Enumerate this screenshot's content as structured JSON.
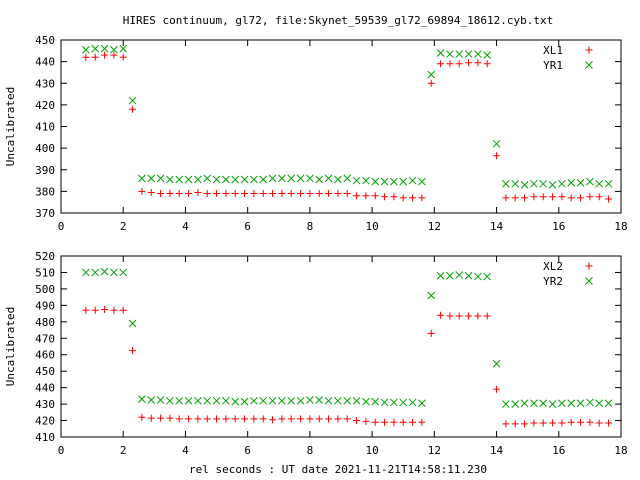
{
  "chart_data": [
    {
      "type": "scatter",
      "title": "HIRES continuum, gl72, file:Skynet_59539_gl72_69894_18612.cyb.txt",
      "xlabel": "",
      "ylabel": "Uncalibrated",
      "xlim": [
        0,
        18
      ],
      "ylim": [
        370,
        450
      ],
      "xticks": [
        0,
        2,
        4,
        6,
        8,
        10,
        12,
        14,
        16,
        18
      ],
      "yticks": [
        370,
        380,
        390,
        400,
        410,
        420,
        430,
        440,
        450
      ],
      "legend_position": "top-right",
      "series": [
        {
          "name": "XL1",
          "marker": "plus",
          "color": "#ff0000",
          "x": [
            0.8,
            1.1,
            1.4,
            1.7,
            2.0,
            2.3,
            2.6,
            2.9,
            3.2,
            3.5,
            3.8,
            4.1,
            4.4,
            4.7,
            5.0,
            5.3,
            5.6,
            5.9,
            6.2,
            6.5,
            6.8,
            7.1,
            7.4,
            7.7,
            8.0,
            8.3,
            8.6,
            8.9,
            9.2,
            9.5,
            9.8,
            10.1,
            10.4,
            10.7,
            11.0,
            11.3,
            11.6,
            11.9,
            12.2,
            12.5,
            12.8,
            13.1,
            13.4,
            13.7,
            14.0,
            14.3,
            14.6,
            14.9,
            15.2,
            15.5,
            15.8,
            16.1,
            16.4,
            16.7,
            17.0,
            17.3,
            17.6
          ],
          "y": [
            442,
            442,
            443,
            443,
            442,
            418,
            380,
            379.5,
            379,
            379,
            379,
            379,
            379.5,
            379,
            379,
            379,
            379,
            379,
            379,
            379,
            379,
            379,
            379,
            379,
            379,
            379,
            379,
            379,
            379,
            378,
            378,
            378,
            377.5,
            377.5,
            377,
            377,
            377,
            430,
            439,
            439,
            439,
            439.5,
            439.5,
            439,
            396.5,
            377,
            377,
            377,
            377.5,
            377.5,
            377.5,
            377.5,
            377,
            377,
            377.5,
            377.5,
            376.5
          ]
        },
        {
          "name": "YR1",
          "marker": "cross",
          "color": "#00a000",
          "x": [
            0.8,
            1.1,
            1.4,
            1.7,
            2.0,
            2.3,
            2.6,
            2.9,
            3.2,
            3.5,
            3.8,
            4.1,
            4.4,
            4.7,
            5.0,
            5.3,
            5.6,
            5.9,
            6.2,
            6.5,
            6.8,
            7.1,
            7.4,
            7.7,
            8.0,
            8.3,
            8.6,
            8.9,
            9.2,
            9.5,
            9.8,
            10.1,
            10.4,
            10.7,
            11.0,
            11.3,
            11.6,
            11.9,
            12.2,
            12.5,
            12.8,
            13.1,
            13.4,
            13.7,
            14.0,
            14.3,
            14.6,
            14.9,
            15.2,
            15.5,
            15.8,
            16.1,
            16.4,
            16.7,
            17.0,
            17.3,
            17.6
          ],
          "y": [
            445.5,
            446,
            446,
            445.5,
            446,
            422,
            386,
            386,
            386,
            385.5,
            385.5,
            385.5,
            385.5,
            386,
            385.5,
            385.5,
            385.5,
            385.5,
            385.5,
            385.5,
            386,
            386,
            386,
            386,
            386,
            385.5,
            386,
            385.5,
            386,
            385,
            385,
            384.5,
            384.5,
            384.5,
            384.5,
            385,
            384.5,
            434,
            444,
            443.5,
            443.5,
            443.5,
            443.5,
            443,
            402,
            383.5,
            383.5,
            383,
            383.5,
            383.5,
            383,
            383.5,
            384,
            384,
            384.5,
            383.5,
            383.5
          ]
        }
      ]
    },
    {
      "type": "scatter",
      "title": "",
      "xlabel": "rel seconds : UT date 2021-11-21T14:58:11.230",
      "ylabel": "Uncalibrated",
      "xlim": [
        0,
        18
      ],
      "ylim": [
        410,
        520
      ],
      "xticks": [
        0,
        2,
        4,
        6,
        8,
        10,
        12,
        14,
        16,
        18
      ],
      "yticks": [
        410,
        420,
        430,
        440,
        450,
        460,
        470,
        480,
        490,
        500,
        510,
        520
      ],
      "legend_position": "top-right",
      "series": [
        {
          "name": "XL2",
          "marker": "plus",
          "color": "#ff0000",
          "x": [
            0.8,
            1.1,
            1.4,
            1.7,
            2.0,
            2.3,
            2.6,
            2.9,
            3.2,
            3.5,
            3.8,
            4.1,
            4.4,
            4.7,
            5.0,
            5.3,
            5.6,
            5.9,
            6.2,
            6.5,
            6.8,
            7.1,
            7.4,
            7.7,
            8.0,
            8.3,
            8.6,
            8.9,
            9.2,
            9.5,
            9.8,
            10.1,
            10.4,
            10.7,
            11.0,
            11.3,
            11.6,
            11.9,
            12.2,
            12.5,
            12.8,
            13.1,
            13.4,
            13.7,
            14.0,
            14.3,
            14.6,
            14.9,
            15.2,
            15.5,
            15.8,
            16.1,
            16.4,
            16.7,
            17.0,
            17.3,
            17.6
          ],
          "y": [
            487,
            487,
            487.5,
            487,
            487,
            462.5,
            422,
            421.5,
            421.5,
            421.5,
            421,
            421,
            421,
            421,
            421,
            421,
            421,
            421,
            421,
            421,
            420.5,
            421,
            421,
            421,
            421,
            421,
            421,
            421,
            421,
            420,
            419.5,
            419,
            419,
            419,
            419,
            419,
            419,
            473,
            484,
            483.5,
            483.5,
            483.5,
            483.5,
            483.5,
            439,
            418,
            418,
            418,
            418.5,
            418.5,
            418.5,
            418.5,
            419,
            419,
            419,
            418.5,
            418.5
          ]
        },
        {
          "name": "YR2",
          "marker": "cross",
          "color": "#00a000",
          "x": [
            0.8,
            1.1,
            1.4,
            1.7,
            2.0,
            2.3,
            2.6,
            2.9,
            3.2,
            3.5,
            3.8,
            4.1,
            4.4,
            4.7,
            5.0,
            5.3,
            5.6,
            5.9,
            6.2,
            6.5,
            6.8,
            7.1,
            7.4,
            7.7,
            8.0,
            8.3,
            8.6,
            8.9,
            9.2,
            9.5,
            9.8,
            10.1,
            10.4,
            10.7,
            11.0,
            11.3,
            11.6,
            11.9,
            12.2,
            12.5,
            12.8,
            13.1,
            13.4,
            13.7,
            14.0,
            14.3,
            14.6,
            14.9,
            15.2,
            15.5,
            15.8,
            16.1,
            16.4,
            16.7,
            17.0,
            17.3,
            17.6
          ],
          "y": [
            510,
            510,
            510.5,
            510,
            510,
            479,
            433,
            432.5,
            432.5,
            432,
            432,
            432,
            432,
            432,
            432,
            432,
            431.5,
            431.5,
            432,
            432,
            432,
            432,
            432,
            432,
            432.5,
            432.5,
            432,
            432,
            432,
            432,
            431.5,
            431.5,
            431,
            431,
            431,
            431,
            430.5,
            496,
            508,
            508,
            508.5,
            508,
            507.5,
            507.5,
            454.5,
            430,
            430,
            430.5,
            430.5,
            430.5,
            430,
            430.5,
            430.5,
            430.5,
            431,
            430.5,
            430.5
          ]
        }
      ]
    }
  ]
}
